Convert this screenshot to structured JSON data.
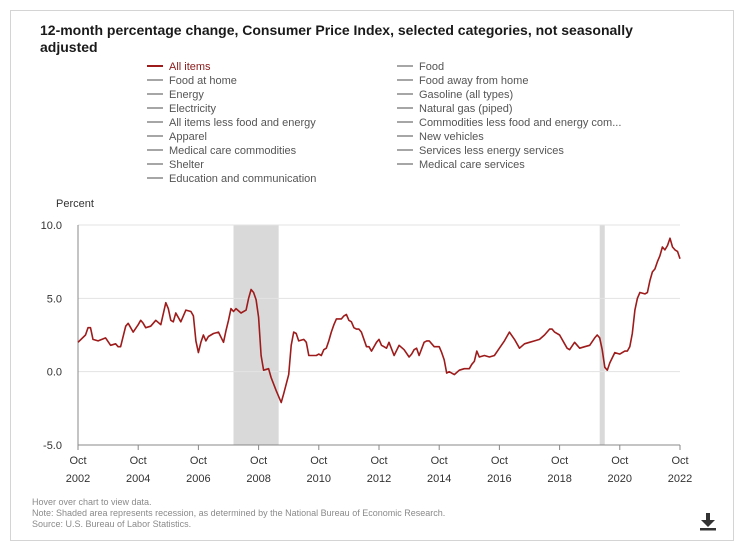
{
  "title": "12-month percentage change, Consumer Price Index, selected categories, not seasonally adjusted",
  "legend": [
    {
      "label": "All items",
      "active": true
    },
    {
      "label": "Food",
      "active": false
    },
    {
      "label": "Food at home",
      "active": false
    },
    {
      "label": "Food away from home",
      "active": false
    },
    {
      "label": "Energy",
      "active": false
    },
    {
      "label": "Gasoline (all types)",
      "active": false
    },
    {
      "label": "Electricity",
      "active": false
    },
    {
      "label": "Natural gas (piped)",
      "active": false
    },
    {
      "label": "All items less food and energy",
      "active": false
    },
    {
      "label": "Commodities less food and energy com...",
      "active": false
    },
    {
      "label": "Apparel",
      "active": false
    },
    {
      "label": "New vehicles",
      "active": false
    },
    {
      "label": "Medical care commodities",
      "active": false
    },
    {
      "label": "Services less energy services",
      "active": false
    },
    {
      "label": "Shelter",
      "active": false
    },
    {
      "label": "Medical care services",
      "active": false
    },
    {
      "label": "Education and communication",
      "active": false
    }
  ],
  "footnotes": [
    "Hover over chart to view data.",
    "Note: Shaded area represents recession, as determined by the National Bureau of Economic Research.",
    "Source: U.S. Bureau of Labor Statistics."
  ],
  "colors": {
    "series": "#9e1b1b",
    "recession": "#d9d9d9",
    "inactive_legend": "#a6a6a6"
  },
  "icons": {
    "download": "download-icon"
  },
  "chart_data": {
    "type": "line",
    "ylabel": "Percent",
    "ylim": [
      -5.0,
      10.0
    ],
    "yticks": [
      10.0,
      5.0,
      0.0,
      -5.0
    ],
    "ytick_labels": [
      "10.0",
      "5.0",
      "0.0",
      "-5.0"
    ],
    "xlim": [
      "2002-10",
      "2022-10"
    ],
    "xticks": [
      "2002-10",
      "2004-10",
      "2006-10",
      "2008-10",
      "2010-10",
      "2012-10",
      "2014-10",
      "2016-10",
      "2018-10",
      "2020-10",
      "2022-10"
    ],
    "xtick_labels": [
      [
        "Oct",
        "2002"
      ],
      [
        "Oct",
        "2004"
      ],
      [
        "Oct",
        "2006"
      ],
      [
        "Oct",
        "2008"
      ],
      [
        "Oct",
        "2010"
      ],
      [
        "Oct",
        "2012"
      ],
      [
        "Oct",
        "2014"
      ],
      [
        "Oct",
        "2016"
      ],
      [
        "Oct",
        "2018"
      ],
      [
        "Oct",
        "2020"
      ],
      [
        "Oct",
        "2022"
      ]
    ],
    "grid": "horizontal",
    "recessions": [
      [
        "2007-12",
        "2009-06"
      ],
      [
        "2020-02",
        "2020-04"
      ]
    ],
    "series": [
      {
        "name": "All items",
        "points": [
          [
            "2002-10",
            2.0
          ],
          [
            "2003-01",
            2.5
          ],
          [
            "2003-02",
            3.0
          ],
          [
            "2003-03",
            3.0
          ],
          [
            "2003-04",
            2.2
          ],
          [
            "2003-06",
            2.1
          ],
          [
            "2003-09",
            2.3
          ],
          [
            "2003-11",
            1.8
          ],
          [
            "2004-01",
            1.9
          ],
          [
            "2004-02",
            1.7
          ],
          [
            "2004-03",
            1.7
          ],
          [
            "2004-05",
            3.1
          ],
          [
            "2004-06",
            3.3
          ],
          [
            "2004-08",
            2.7
          ],
          [
            "2004-10",
            3.2
          ],
          [
            "2004-11",
            3.5
          ],
          [
            "2004-12",
            3.3
          ],
          [
            "2005-01",
            3.0
          ],
          [
            "2005-03",
            3.1
          ],
          [
            "2005-05",
            3.5
          ],
          [
            "2005-07",
            3.2
          ],
          [
            "2005-09",
            4.7
          ],
          [
            "2005-10",
            4.3
          ],
          [
            "2005-11",
            3.5
          ],
          [
            "2005-12",
            3.4
          ],
          [
            "2006-01",
            4.0
          ],
          [
            "2006-03",
            3.4
          ],
          [
            "2006-05",
            4.2
          ],
          [
            "2006-07",
            4.1
          ],
          [
            "2006-08",
            3.8
          ],
          [
            "2006-09",
            2.1
          ],
          [
            "2006-10",
            1.3
          ],
          [
            "2006-11",
            2.0
          ],
          [
            "2006-12",
            2.5
          ],
          [
            "2007-01",
            2.1
          ],
          [
            "2007-02",
            2.4
          ],
          [
            "2007-04",
            2.6
          ],
          [
            "2007-06",
            2.7
          ],
          [
            "2007-08",
            2.0
          ],
          [
            "2007-09",
            2.8
          ],
          [
            "2007-10",
            3.5
          ],
          [
            "2007-11",
            4.3
          ],
          [
            "2007-12",
            4.1
          ],
          [
            "2008-01",
            4.3
          ],
          [
            "2008-03",
            4.0
          ],
          [
            "2008-05",
            4.2
          ],
          [
            "2008-06",
            5.0
          ],
          [
            "2008-07",
            5.6
          ],
          [
            "2008-08",
            5.4
          ],
          [
            "2008-09",
            4.9
          ],
          [
            "2008-10",
            3.7
          ],
          [
            "2008-11",
            1.1
          ],
          [
            "2008-12",
            0.1
          ],
          [
            "2009-02",
            0.2
          ],
          [
            "2009-03",
            -0.4
          ],
          [
            "2009-05",
            -1.3
          ],
          [
            "2009-07",
            -2.1
          ],
          [
            "2009-08",
            -1.5
          ],
          [
            "2009-10",
            -0.2
          ],
          [
            "2009-11",
            1.8
          ],
          [
            "2009-12",
            2.7
          ],
          [
            "2010-01",
            2.6
          ],
          [
            "2010-02",
            2.1
          ],
          [
            "2010-04",
            2.2
          ],
          [
            "2010-05",
            2.0
          ],
          [
            "2010-06",
            1.1
          ],
          [
            "2010-08",
            1.1
          ],
          [
            "2010-09",
            1.1
          ],
          [
            "2010-10",
            1.2
          ],
          [
            "2010-11",
            1.1
          ],
          [
            "2010-12",
            1.5
          ],
          [
            "2011-01",
            1.6
          ],
          [
            "2011-02",
            2.1
          ],
          [
            "2011-03",
            2.7
          ],
          [
            "2011-04",
            3.2
          ],
          [
            "2011-05",
            3.6
          ],
          [
            "2011-07",
            3.6
          ],
          [
            "2011-08",
            3.8
          ],
          [
            "2011-09",
            3.9
          ],
          [
            "2011-10",
            3.5
          ],
          [
            "2011-11",
            3.4
          ],
          [
            "2011-12",
            3.0
          ],
          [
            "2012-01",
            2.9
          ],
          [
            "2012-02",
            2.9
          ],
          [
            "2012-03",
            2.7
          ],
          [
            "2012-05",
            1.7
          ],
          [
            "2012-06",
            1.7
          ],
          [
            "2012-07",
            1.4
          ],
          [
            "2012-09",
            2.0
          ],
          [
            "2012-10",
            2.2
          ],
          [
            "2012-11",
            1.8
          ],
          [
            "2012-12",
            1.7
          ],
          [
            "2013-01",
            1.6
          ],
          [
            "2013-02",
            2.0
          ],
          [
            "2013-04",
            1.1
          ],
          [
            "2013-06",
            1.8
          ],
          [
            "2013-08",
            1.5
          ],
          [
            "2013-10",
            1.0
          ],
          [
            "2013-11",
            1.2
          ],
          [
            "2013-12",
            1.5
          ],
          [
            "2014-01",
            1.6
          ],
          [
            "2014-02",
            1.1
          ],
          [
            "2014-04",
            2.0
          ],
          [
            "2014-05",
            2.1
          ],
          [
            "2014-06",
            2.1
          ],
          [
            "2014-08",
            1.7
          ],
          [
            "2014-10",
            1.7
          ],
          [
            "2014-11",
            1.3
          ],
          [
            "2014-12",
            0.8
          ],
          [
            "2015-01",
            -0.1
          ],
          [
            "2015-02",
            0.0
          ],
          [
            "2015-04",
            -0.2
          ],
          [
            "2015-06",
            0.1
          ],
          [
            "2015-08",
            0.2
          ],
          [
            "2015-10",
            0.2
          ],
          [
            "2015-11",
            0.5
          ],
          [
            "2015-12",
            0.7
          ],
          [
            "2016-01",
            1.4
          ],
          [
            "2016-02",
            1.0
          ],
          [
            "2016-04",
            1.1
          ],
          [
            "2016-06",
            1.0
          ],
          [
            "2016-08",
            1.1
          ],
          [
            "2016-10",
            1.6
          ],
          [
            "2016-12",
            2.1
          ],
          [
            "2017-02",
            2.7
          ],
          [
            "2017-04",
            2.2
          ],
          [
            "2017-06",
            1.6
          ],
          [
            "2017-08",
            1.9
          ],
          [
            "2017-10",
            2.0
          ],
          [
            "2017-12",
            2.1
          ],
          [
            "2018-02",
            2.2
          ],
          [
            "2018-04",
            2.5
          ],
          [
            "2018-06",
            2.9
          ],
          [
            "2018-07",
            2.9
          ],
          [
            "2018-08",
            2.7
          ],
          [
            "2018-10",
            2.5
          ],
          [
            "2018-12",
            1.9
          ],
          [
            "2019-01",
            1.6
          ],
          [
            "2019-02",
            1.5
          ],
          [
            "2019-04",
            2.0
          ],
          [
            "2019-06",
            1.6
          ],
          [
            "2019-08",
            1.7
          ],
          [
            "2019-10",
            1.8
          ],
          [
            "2019-12",
            2.3
          ],
          [
            "2020-01",
            2.5
          ],
          [
            "2020-02",
            2.3
          ],
          [
            "2020-03",
            1.5
          ],
          [
            "2020-04",
            0.3
          ],
          [
            "2020-05",
            0.1
          ],
          [
            "2020-06",
            0.6
          ],
          [
            "2020-08",
            1.3
          ],
          [
            "2020-10",
            1.2
          ],
          [
            "2020-12",
            1.4
          ],
          [
            "2021-01",
            1.4
          ],
          [
            "2021-02",
            1.7
          ],
          [
            "2021-03",
            2.6
          ],
          [
            "2021-04",
            4.2
          ],
          [
            "2021-05",
            5.0
          ],
          [
            "2021-06",
            5.4
          ],
          [
            "2021-08",
            5.3
          ],
          [
            "2021-09",
            5.4
          ],
          [
            "2021-10",
            6.2
          ],
          [
            "2021-11",
            6.8
          ],
          [
            "2021-12",
            7.0
          ],
          [
            "2022-01",
            7.5
          ],
          [
            "2022-02",
            7.9
          ],
          [
            "2022-03",
            8.5
          ],
          [
            "2022-04",
            8.3
          ],
          [
            "2022-05",
            8.6
          ],
          [
            "2022-06",
            9.1
          ],
          [
            "2022-07",
            8.5
          ],
          [
            "2022-08",
            8.3
          ],
          [
            "2022-09",
            8.2
          ],
          [
            "2022-10",
            7.7
          ]
        ]
      }
    ]
  }
}
